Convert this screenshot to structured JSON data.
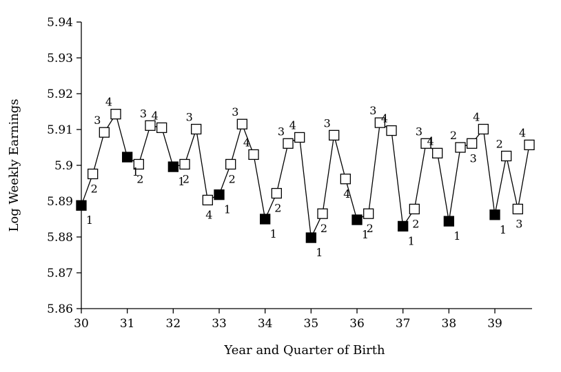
{
  "chart_data": {
    "type": "scatter",
    "title": "",
    "xlabel": "Year and Quarter of Birth",
    "ylabel": "Log Weekly Earnings",
    "xlim": [
      30,
      39.8
    ],
    "ylim": [
      5.86,
      5.94
    ],
    "x_ticks": [
      30,
      31,
      32,
      33,
      34,
      35,
      36,
      37,
      38,
      39
    ],
    "x_tick_labels": [
      "30",
      "31",
      "32",
      "33",
      "34",
      "35",
      "36",
      "37",
      "38",
      "39"
    ],
    "y_ticks": [
      5.86,
      5.87,
      5.88,
      5.89,
      5.9,
      5.91,
      5.92,
      5.93,
      5.94
    ],
    "y_tick_labels": [
      "5.86",
      "5.87",
      "5.88",
      "5.89",
      "5.9",
      "5.91",
      "5.92",
      "5.93",
      "5.94"
    ],
    "grid": false,
    "legend": "none",
    "marker_encoding": "filled square = quarter 1, open square = quarters 2-4",
    "points": [
      {
        "year": 30,
        "quarter": 1,
        "x": 30.0,
        "y": 5.8888
      },
      {
        "year": 30,
        "quarter": 2,
        "x": 30.25,
        "y": 5.8976
      },
      {
        "year": 30,
        "quarter": 3,
        "x": 30.5,
        "y": 5.9092
      },
      {
        "year": 30,
        "quarter": 4,
        "x": 30.75,
        "y": 5.9143
      },
      {
        "year": 31,
        "quarter": 1,
        "x": 31.0,
        "y": 5.9023
      },
      {
        "year": 31,
        "quarter": 2,
        "x": 31.25,
        "y": 5.9003
      },
      {
        "year": 31,
        "quarter": 3,
        "x": 31.5,
        "y": 5.9111
      },
      {
        "year": 31,
        "quarter": 4,
        "x": 31.75,
        "y": 5.9105
      },
      {
        "year": 32,
        "quarter": 1,
        "x": 32.0,
        "y": 5.8996
      },
      {
        "year": 32,
        "quarter": 2,
        "x": 32.25,
        "y": 5.9003
      },
      {
        "year": 32,
        "quarter": 3,
        "x": 32.5,
        "y": 5.9101
      },
      {
        "year": 32,
        "quarter": 4,
        "x": 32.75,
        "y": 5.8903
      },
      {
        "year": 33,
        "quarter": 1,
        "x": 33.0,
        "y": 5.8918
      },
      {
        "year": 33,
        "quarter": 2,
        "x": 33.25,
        "y": 5.9003
      },
      {
        "year": 33,
        "quarter": 3,
        "x": 33.5,
        "y": 5.9115
      },
      {
        "year": 33,
        "quarter": 4,
        "x": 33.75,
        "y": 5.903
      },
      {
        "year": 34,
        "quarter": 1,
        "x": 34.0,
        "y": 5.885
      },
      {
        "year": 34,
        "quarter": 2,
        "x": 34.25,
        "y": 5.8922
      },
      {
        "year": 34,
        "quarter": 3,
        "x": 34.5,
        "y": 5.9061
      },
      {
        "year": 34,
        "quarter": 4,
        "x": 34.75,
        "y": 5.9078
      },
      {
        "year": 35,
        "quarter": 1,
        "x": 35.0,
        "y": 5.8798
      },
      {
        "year": 35,
        "quarter": 2,
        "x": 35.25,
        "y": 5.8865
      },
      {
        "year": 35,
        "quarter": 3,
        "x": 35.5,
        "y": 5.9084
      },
      {
        "year": 35,
        "quarter": 4,
        "x": 35.75,
        "y": 5.8962
      },
      {
        "year": 36,
        "quarter": 1,
        "x": 36.0,
        "y": 5.8848
      },
      {
        "year": 36,
        "quarter": 2,
        "x": 36.25,
        "y": 5.8865
      },
      {
        "year": 36,
        "quarter": 3,
        "x": 36.5,
        "y": 5.9119
      },
      {
        "year": 36,
        "quarter": 4,
        "x": 36.75,
        "y": 5.9097
      },
      {
        "year": 37,
        "quarter": 1,
        "x": 37.0,
        "y": 5.883
      },
      {
        "year": 37,
        "quarter": 2,
        "x": 37.25,
        "y": 5.8878
      },
      {
        "year": 37,
        "quarter": 3,
        "x": 37.5,
        "y": 5.9061
      },
      {
        "year": 37,
        "quarter": 4,
        "x": 37.75,
        "y": 5.9034
      },
      {
        "year": 38,
        "quarter": 1,
        "x": 38.0,
        "y": 5.8844
      },
      {
        "year": 38,
        "quarter": 2,
        "x": 38.25,
        "y": 5.905
      },
      {
        "year": 38,
        "quarter": 3,
        "x": 38.5,
        "y": 5.9061
      },
      {
        "year": 38,
        "quarter": 4,
        "x": 38.75,
        "y": 5.9101
      },
      {
        "year": 39,
        "quarter": 1,
        "x": 39.0,
        "y": 5.8862
      },
      {
        "year": 39,
        "quarter": 2,
        "x": 39.25,
        "y": 5.9026
      },
      {
        "year": 39,
        "quarter": 3,
        "x": 39.5,
        "y": 5.8878
      },
      {
        "year": 39,
        "quarter": 4,
        "x": 39.75,
        "y": 5.9057
      }
    ]
  }
}
